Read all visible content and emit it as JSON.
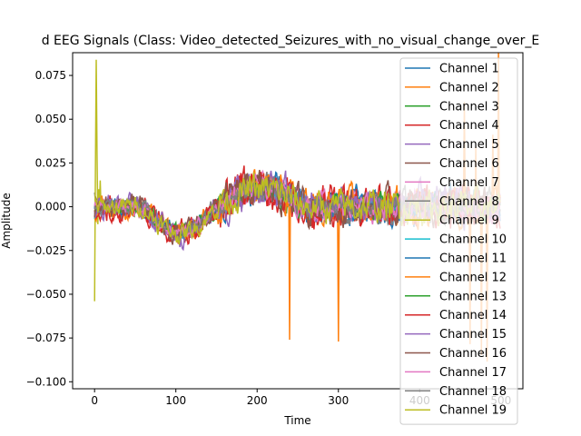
{
  "chart_data": {
    "type": "line",
    "title": "d EEG Signals (Class: Video_detected_Seizures_with_no_visual_change_over_E",
    "xlabel": "Time",
    "ylabel": "Amplitude",
    "xlim": [
      -27,
      527
    ],
    "ylim": [
      -0.104,
      0.088
    ],
    "x_ticks": [
      0,
      100,
      200,
      300,
      400,
      500
    ],
    "y_ticks": [
      -0.1,
      -0.075,
      -0.05,
      -0.025,
      0.0,
      0.025,
      0.05,
      0.075
    ],
    "y_tick_labels": [
      "−0.100",
      "−0.075",
      "−0.050",
      "−0.025",
      "0.000",
      "0.025",
      "0.050",
      "0.075"
    ],
    "x_tick_labels": [
      "0",
      "100",
      "200",
      "300",
      "400",
      "500"
    ],
    "num_points": 500,
    "grid": false,
    "legend_position": "top-right",
    "series": [
      {
        "name": "Channel 1",
        "color": "#1f77b4"
      },
      {
        "name": "Channel 2",
        "color": "#ff7f0e"
      },
      {
        "name": "Channel 3",
        "color": "#2ca02c"
      },
      {
        "name": "Channel 4",
        "color": "#d62728"
      },
      {
        "name": "Channel 5",
        "color": "#9467bd"
      },
      {
        "name": "Channel 6",
        "color": "#8c564b"
      },
      {
        "name": "Channel 7",
        "color": "#e377c2"
      },
      {
        "name": "Channel 8",
        "color": "#7f7f7f"
      },
      {
        "name": "Channel 9",
        "color": "#bcbd22"
      },
      {
        "name": "Channel 10",
        "color": "#17becf"
      },
      {
        "name": "Channel 11",
        "color": "#1f77b4"
      },
      {
        "name": "Channel 12",
        "color": "#ff7f0e"
      },
      {
        "name": "Channel 13",
        "color": "#2ca02c"
      },
      {
        "name": "Channel 14",
        "color": "#d62728"
      },
      {
        "name": "Channel 15",
        "color": "#9467bd"
      },
      {
        "name": "Channel 16",
        "color": "#8c564b"
      },
      {
        "name": "Channel 17",
        "color": "#e377c2"
      },
      {
        "name": "Channel 18",
        "color": "#7f7f7f"
      },
      {
        "name": "Channel 19",
        "color": "#bcbd22"
      }
    ]
  }
}
